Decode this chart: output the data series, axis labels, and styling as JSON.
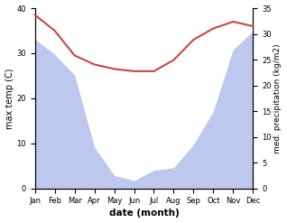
{
  "months": [
    "Jan",
    "Feb",
    "Mar",
    "Apr",
    "May",
    "Jun",
    "Jul",
    "Aug",
    "Sep",
    "Oct",
    "Nov",
    "Dec"
  ],
  "temp": [
    38.5,
    35.0,
    29.5,
    27.5,
    26.5,
    26.0,
    26.0,
    28.5,
    33.0,
    35.5,
    37.0,
    36.0
  ],
  "precip": [
    29.0,
    26.0,
    22.0,
    8.0,
    2.5,
    1.5,
    3.5,
    4.0,
    8.5,
    15.0,
    27.0,
    30.5
  ],
  "temp_color": "#cc4444",
  "precip_fill_color": "#bdc8ee",
  "left_ylim": [
    0,
    40
  ],
  "right_ylim": [
    0,
    35
  ],
  "left_yticks": [
    0,
    10,
    20,
    30,
    40
  ],
  "right_yticks": [
    0,
    5,
    10,
    15,
    20,
    25,
    30,
    35
  ],
  "ylabel_left": "max temp (C)",
  "ylabel_right": "med. precipitation (kg/m2)",
  "xlabel": "date (month)",
  "bg_color": "#ffffff",
  "temp_linewidth": 1.5,
  "ylabel_left_fontsize": 7,
  "ylabel_right_fontsize": 6.5,
  "xlabel_fontsize": 7.5,
  "tick_fontsize": 6
}
